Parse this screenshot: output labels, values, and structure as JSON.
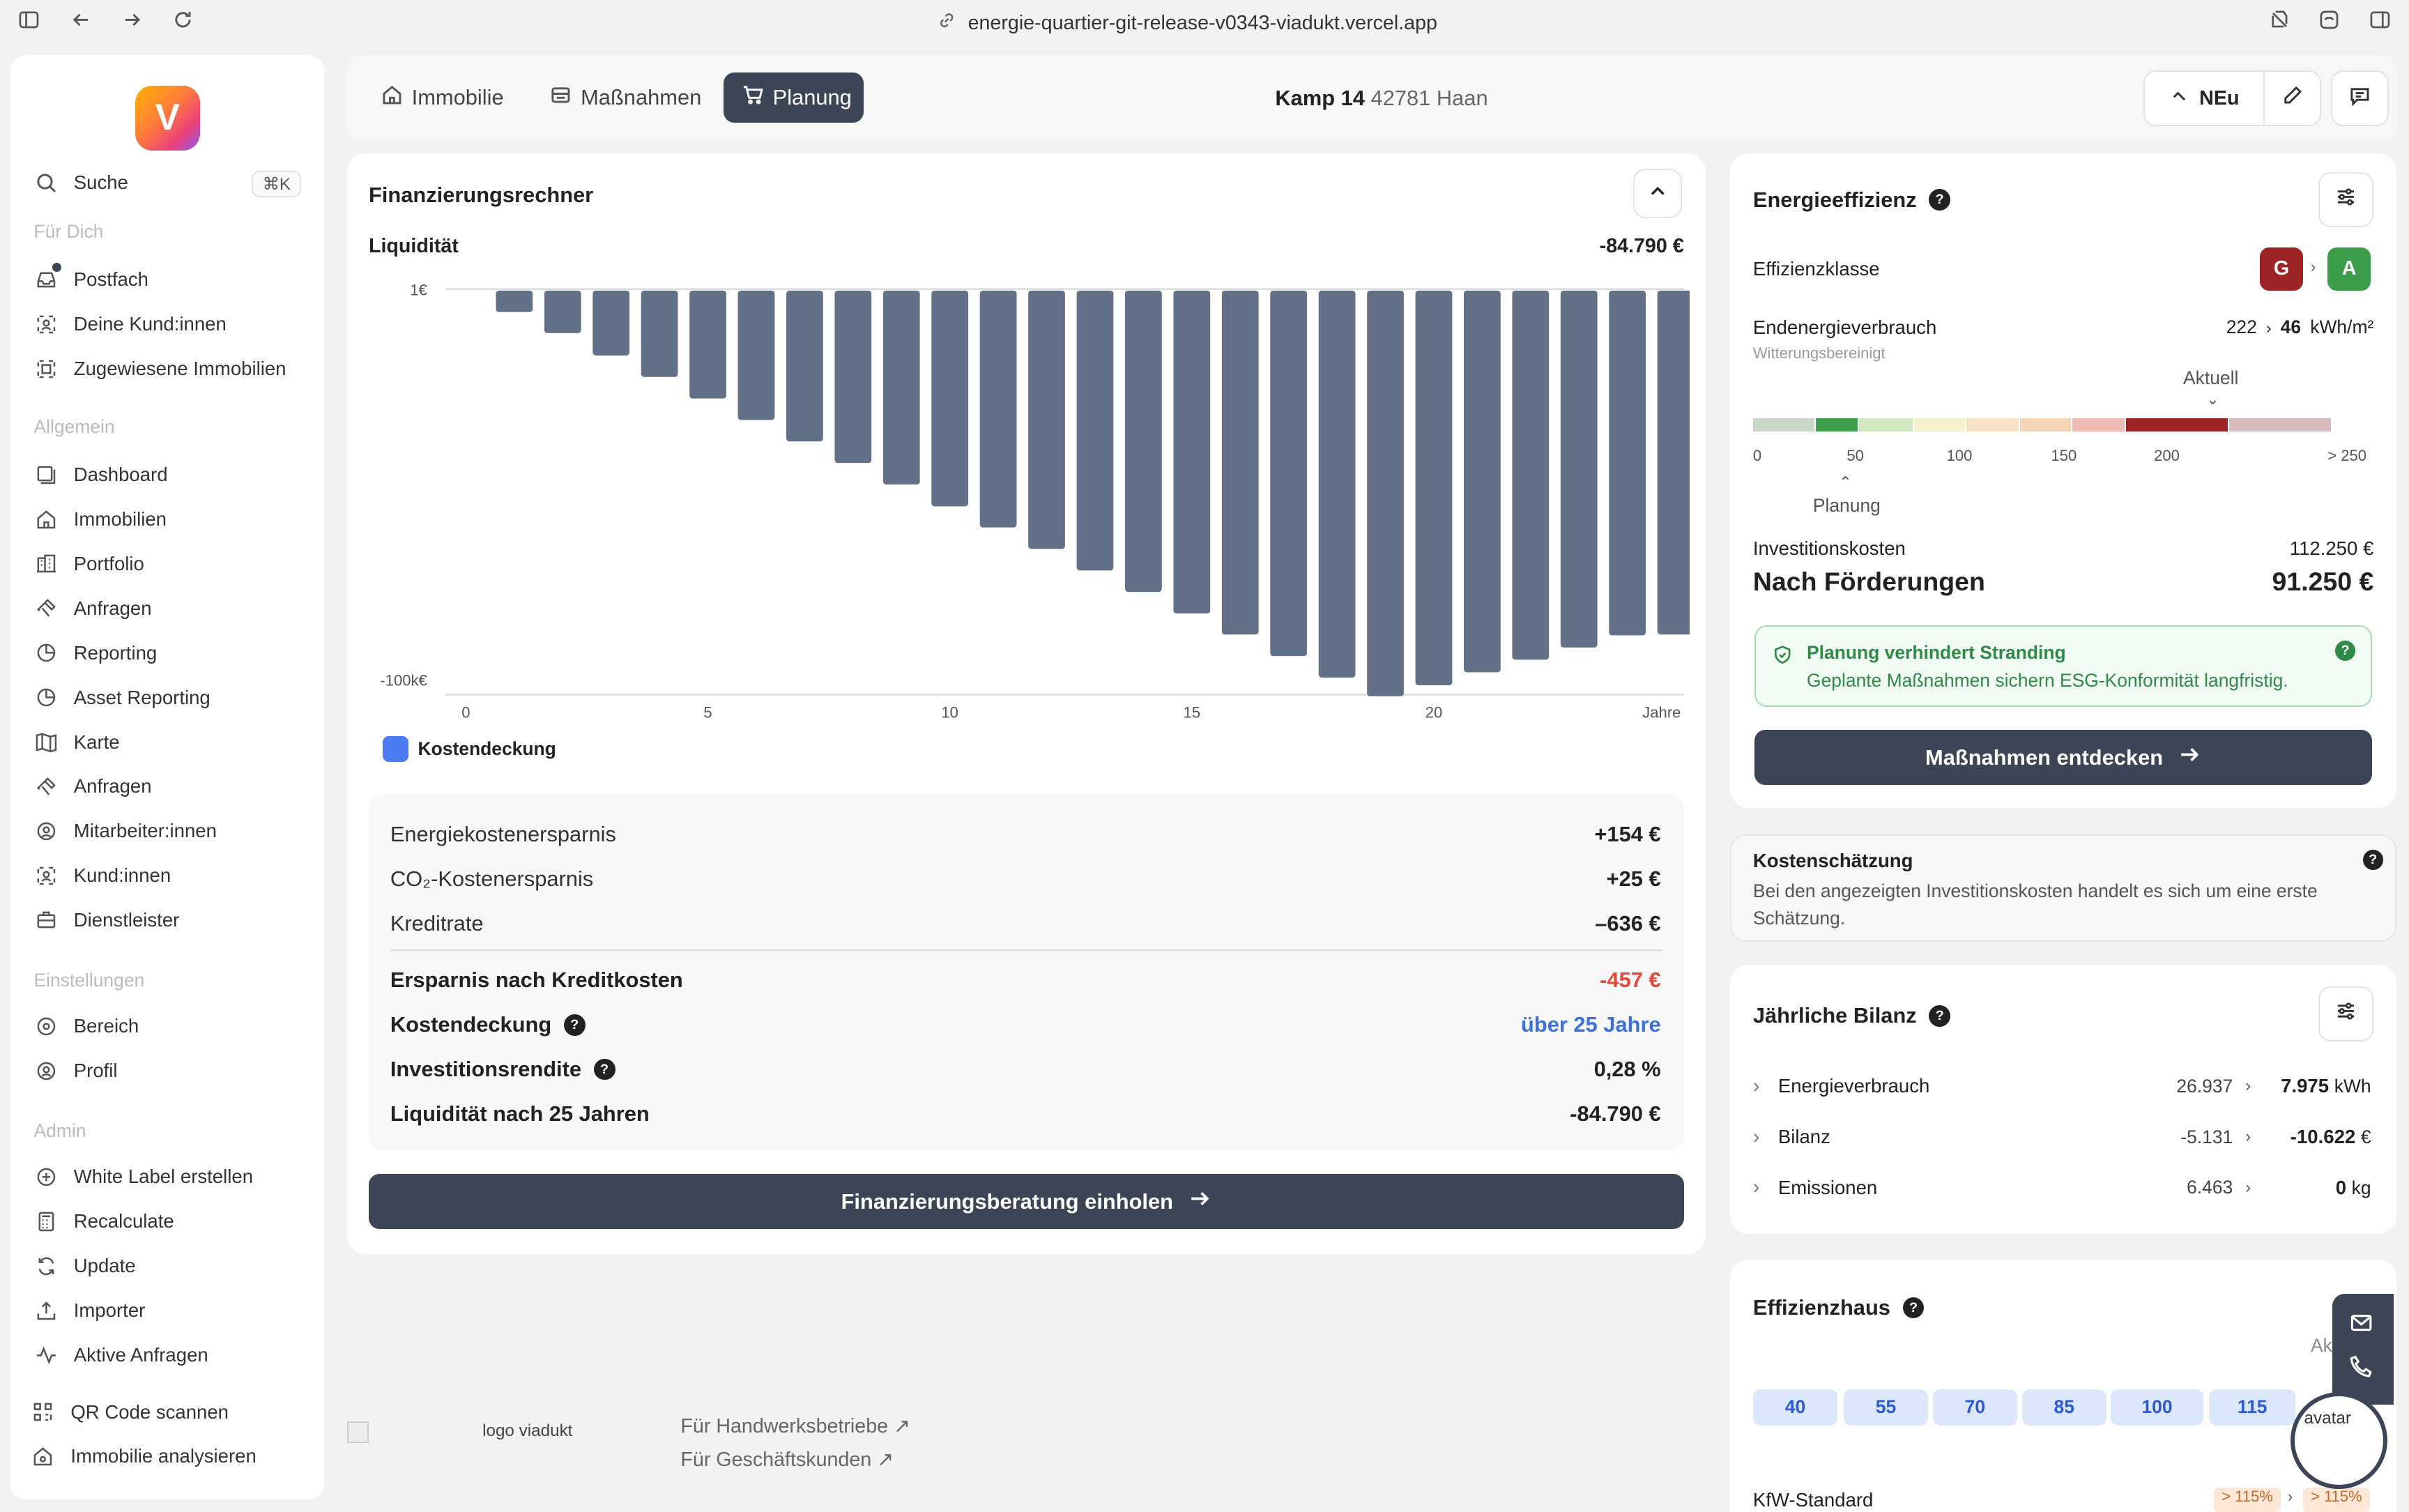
{
  "browser": {
    "url": "energie-quartier-git-release-v0343-viadukt.vercel.app"
  },
  "sidebar": {
    "logo_letter": "V",
    "search_label": "Suche",
    "search_shortcut": "⌘K",
    "sections": {
      "for_you": "Für Dich",
      "general": "Allgemein",
      "settings": "Einstellungen",
      "admin": "Admin"
    },
    "for_you_items": [
      {
        "label": "Postfach",
        "icon": "inbox-icon"
      },
      {
        "label": "Deine Kund:innen",
        "icon": "customers-icon"
      },
      {
        "label": "Zugewiesene Immobilien",
        "icon": "assigned-icon"
      }
    ],
    "general_items": [
      {
        "label": "Dashboard",
        "icon": "dashboard-icon"
      },
      {
        "label": "Immobilien",
        "icon": "home-icon"
      },
      {
        "label": "Portfolio",
        "icon": "buildings-icon"
      },
      {
        "label": "Anfragen",
        "icon": "hammer-icon"
      },
      {
        "label": "Reporting",
        "icon": "pie-icon"
      },
      {
        "label": "Asset Reporting",
        "icon": "pie-icon"
      },
      {
        "label": "Karte",
        "icon": "map-icon"
      },
      {
        "label": "Anfragen",
        "icon": "hammer-icon"
      },
      {
        "label": "Mitarbeiter:innen",
        "icon": "user-circle-icon"
      },
      {
        "label": "Kund:innen",
        "icon": "customers-icon"
      },
      {
        "label": "Dienstleister",
        "icon": "briefcase-icon"
      }
    ],
    "settings_items": [
      {
        "label": "Bereich",
        "icon": "target-icon"
      },
      {
        "label": "Profil",
        "icon": "profile-gear-icon"
      }
    ],
    "admin_items": [
      {
        "label": "White Label erstellen",
        "icon": "plus-circle-icon"
      },
      {
        "label": "Recalculate",
        "icon": "calculator-icon"
      },
      {
        "label": "Update",
        "icon": "refresh-icon"
      },
      {
        "label": "Importer",
        "icon": "upload-icon"
      },
      {
        "label": "Aktive Anfragen",
        "icon": "activity-icon"
      }
    ],
    "bottom_items": [
      {
        "label": "QR Code scannen",
        "icon": "qr-icon"
      },
      {
        "label": "Immobilie analysieren",
        "icon": "home-search-icon"
      }
    ]
  },
  "topbar": {
    "tabs": [
      {
        "label": "Immobilie"
      },
      {
        "label": "Maßnahmen"
      },
      {
        "label": "Planung"
      }
    ],
    "address_street": "Kamp 14",
    "address_city": "42781 Haan",
    "neu_label": "NEu"
  },
  "finance": {
    "title": "Finanzierungsrechner",
    "liquidity_label": "Liquidität",
    "liquidity_value": "-84.790 €",
    "legend": "Kostendeckung",
    "rows": [
      {
        "label": "Energiekostenersparnis",
        "value": "+154 €"
      },
      {
        "label": "CO₂-Kostenersparnis",
        "value": "+25 €"
      },
      {
        "label": "Kreditrate",
        "value": "–636 €"
      }
    ],
    "bold_rows": [
      {
        "label": "Ersparnis nach Kreditkosten",
        "value": "-457 €",
        "color": "#e5483a"
      },
      {
        "label": "Kostendeckung",
        "value": "über 25 Jahre",
        "color": "#3a72d8"
      },
      {
        "label": "Investitionsrendite",
        "value": "0,28 %",
        "color": "#222222"
      },
      {
        "label": "Liquidität nach 25 Jahren",
        "value": "-84.790 €",
        "color": "#222222"
      }
    ],
    "cta": "Finanzierungsberatung einholen"
  },
  "chart_data": {
    "type": "bar",
    "x": [
      1,
      2,
      3,
      4,
      5,
      6,
      7,
      8,
      9,
      10,
      11,
      12,
      13,
      14,
      15,
      16,
      17,
      18,
      19,
      20,
      21,
      22,
      23,
      24,
      25
    ],
    "values": [
      -5300,
      -10500,
      -16000,
      -21300,
      -26600,
      -31900,
      -37200,
      -42500,
      -47800,
      -53200,
      -58400,
      -63700,
      -69000,
      -74300,
      -79600,
      -84800,
      -90100,
      -95400,
      -100000,
      -97300,
      -94100,
      -91000,
      -88000,
      -85000,
      -84790
    ],
    "ytick_labels": [
      "1€",
      "-100k€"
    ],
    "xtick_labels": [
      "0",
      "5",
      "10",
      "15",
      "20"
    ],
    "x_unit_label": "Jahre",
    "ylim": [
      -100000,
      1
    ],
    "bar_color": "#637188",
    "legend_color": "#4c7cf3"
  },
  "energy": {
    "title": "Energieeffizienz",
    "class_label": "Effizienzklasse",
    "class_from": "G",
    "class_to": "A",
    "class_from_color": "#9c2424",
    "class_to_color": "#3c9e4b",
    "consumption_label": "Endenergieverbrauch",
    "consumption_sub": "Witterungsbereinigt",
    "consumption_from": "222",
    "consumption_to": "46",
    "consumption_unit": "kWh/m²",
    "aktuell_label": "Aktuell",
    "planung_label": "Planung",
    "scale_ticks": [
      "0",
      "50",
      "100",
      "150",
      "200",
      "> 250"
    ],
    "invest_label": "Investitionskosten",
    "invest_value": "112.250 €",
    "after_label": "Nach Förderungen",
    "after_value": "91.250 €",
    "alert_title": "Planung verhindert Stranding",
    "alert_text": "Geplante Maßnahmen sichern ESG-Konformität langfristig.",
    "cta": "Maßnahmen entdecken"
  },
  "estimate": {
    "title": "Kostenschätzung",
    "text": "Bei den angezeigten Investitionskosten handelt es sich um eine erste Schätzung."
  },
  "bilanz": {
    "title": "Jährliche Bilanz",
    "rows": [
      {
        "label": "Energieverbrauch",
        "from": "26.937",
        "to": "7.975",
        "unit": "kWh"
      },
      {
        "label": "Bilanz",
        "from": "-5.131",
        "to": "-10.622",
        "unit": "€"
      },
      {
        "label": "Emissionen",
        "from": "6.463",
        "to": "0",
        "unit": "kg"
      }
    ]
  },
  "effizienzhaus": {
    "title": "Effizienzhaus",
    "partial_label": "Ak",
    "levels": [
      "40",
      "55",
      "70",
      "85",
      "100",
      "115"
    ],
    "kfw_label": "KfW-Standard",
    "kfw_from": "> 115%",
    "kfw_to": "> 115%",
    "avatar_alt": "avatar"
  },
  "footer": {
    "logo_alt": "logo viadukt",
    "link1": "Für Handwerksbetriebe",
    "link2": "Für Geschäftskunden"
  }
}
